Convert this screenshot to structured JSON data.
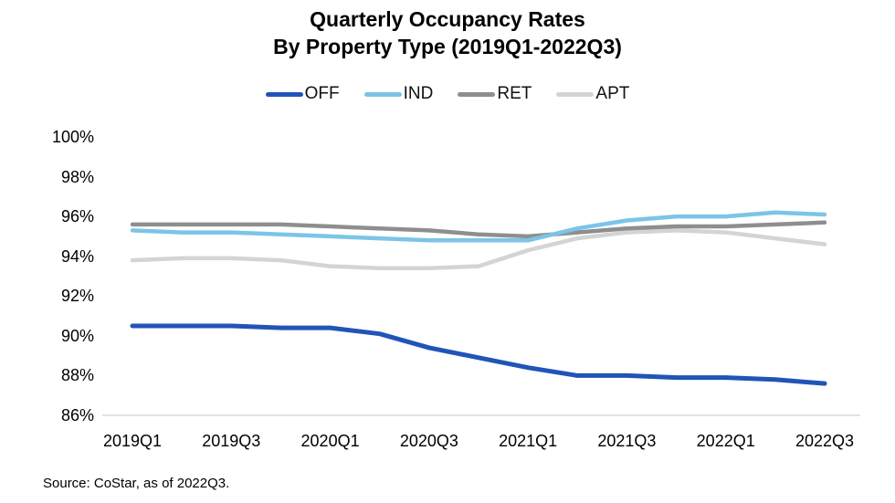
{
  "title": {
    "line1": "Quarterly Occupancy Rates",
    "line2": "By Property Type (2019Q1-2022Q3)"
  },
  "source_note": "Source: CoStar, as of 2022Q3.",
  "chart_data": {
    "type": "line",
    "title": "Quarterly Occupancy Rates By Property Type (2019Q1-2022Q3)",
    "categories": [
      "2019Q1",
      "2019Q2",
      "2019Q3",
      "2019Q4",
      "2020Q1",
      "2020Q2",
      "2020Q3",
      "2020Q4",
      "2021Q1",
      "2021Q2",
      "2021Q3",
      "2021Q4",
      "2022Q1",
      "2022Q2",
      "2022Q3"
    ],
    "x_tick_labels": [
      "2019Q1",
      "2019Q3",
      "2020Q1",
      "2020Q3",
      "2021Q1",
      "2021Q3",
      "2022Q1",
      "2022Q3"
    ],
    "y_tick_labels": [
      "100%",
      "98%",
      "96%",
      "94%",
      "92%",
      "90%",
      "88%",
      "86%"
    ],
    "ylim": [
      86,
      100
    ],
    "y_step": 2,
    "grid": false,
    "legend_position": "top",
    "axis_line_color": "#d9d9d9",
    "series": [
      {
        "name": "OFF",
        "color": "#2154b8",
        "values": [
          90.5,
          90.5,
          90.5,
          90.4,
          90.4,
          90.1,
          89.4,
          88.9,
          88.4,
          88.0,
          88.0,
          87.9,
          87.9,
          87.8,
          87.6
        ]
      },
      {
        "name": "IND",
        "color": "#7cc4e8",
        "values": [
          95.3,
          95.2,
          95.2,
          95.1,
          95.0,
          94.9,
          94.8,
          94.8,
          94.8,
          95.4,
          95.8,
          96.0,
          96.0,
          96.2,
          96.1
        ]
      },
      {
        "name": "RET",
        "color": "#8e8e8e",
        "values": [
          95.6,
          95.6,
          95.6,
          95.6,
          95.5,
          95.4,
          95.3,
          95.1,
          95.0,
          95.2,
          95.4,
          95.5,
          95.5,
          95.6,
          95.7
        ]
      },
      {
        "name": "APT",
        "color": "#d4d4d4",
        "values": [
          93.8,
          93.9,
          93.9,
          93.8,
          93.5,
          93.4,
          93.4,
          93.5,
          94.3,
          94.9,
          95.2,
          95.3,
          95.2,
          94.9,
          94.6
        ]
      }
    ]
  }
}
